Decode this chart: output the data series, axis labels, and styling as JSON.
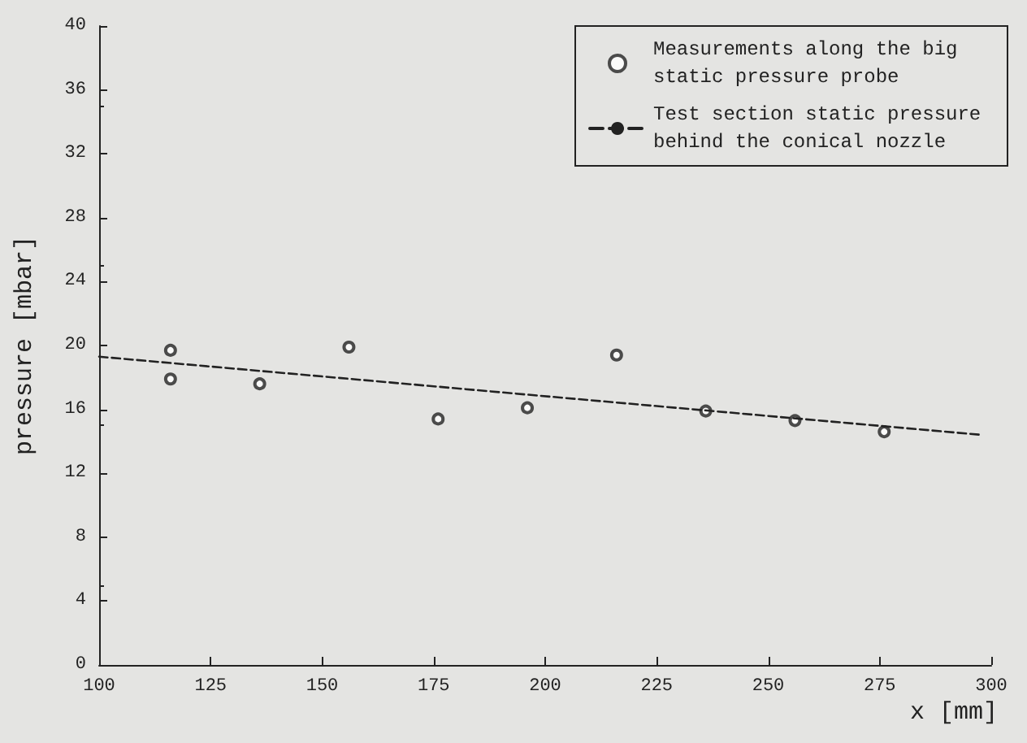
{
  "chart_data": {
    "type": "scatter",
    "xlabel": "x [mm]",
    "ylabel": "pressure [mbar]",
    "xlim": [
      100,
      300
    ],
    "xticks": [
      100,
      125,
      150,
      175,
      200,
      225,
      250,
      275,
      300
    ],
    "ylim": [
      0,
      40
    ],
    "yticks": [
      0,
      4,
      8,
      12,
      16,
      20,
      24,
      28,
      32,
      36,
      40
    ],
    "grid": false,
    "legend": "top right",
    "series": [
      {
        "name": "Measurements along the big static pressure probe",
        "marker": "circle",
        "color": "#222222",
        "x": [
          116,
          116,
          136,
          156,
          176,
          196,
          216,
          236,
          256,
          276
        ],
        "values": [
          19.7,
          17.9,
          17.6,
          19.9,
          15.4,
          16.1,
          19.4,
          15.9,
          15.3,
          14.6
        ]
      },
      {
        "name": "Test section static pressure behind the conical nozzle",
        "type": "line",
        "marker": "none",
        "line_style": "dashed",
        "color": "#222222",
        "x": [
          100,
          298
        ],
        "values": [
          19.3,
          14.4
        ]
      }
    ]
  }
}
